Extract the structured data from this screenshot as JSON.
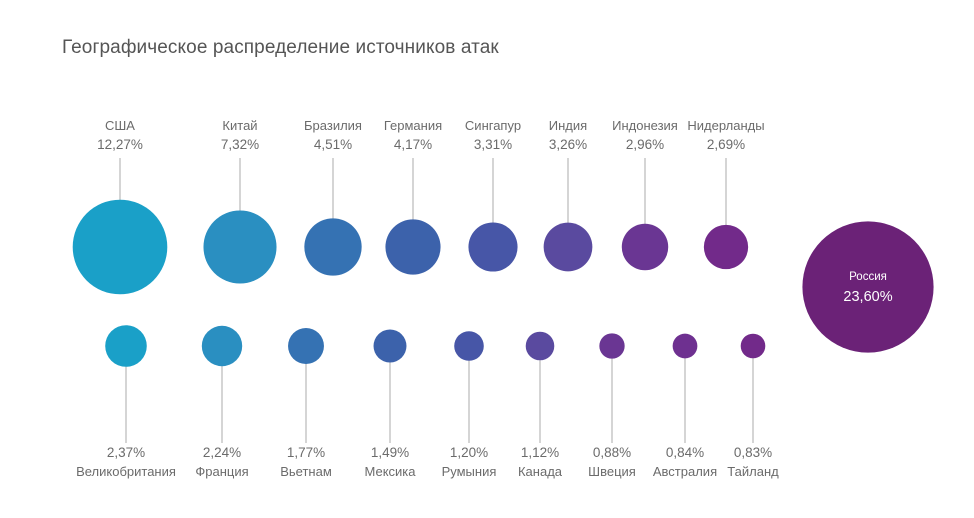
{
  "title": "Географическое распределение источников атак",
  "chart_data": {
    "type": "bubble",
    "title": "Географическое распределение источников атак",
    "unit": "%",
    "series": [
      {
        "row": "top",
        "points": [
          {
            "country": "США",
            "value": 12.27,
            "label": "12,27%",
            "color": "#1aa0c8"
          },
          {
            "country": "Китай",
            "value": 7.32,
            "label": "7,32%",
            "color": "#2a8fc1"
          },
          {
            "country": "Бразилия",
            "value": 4.51,
            "label": "4,51%",
            "color": "#3572b3"
          },
          {
            "country": "Германия",
            "value": 4.17,
            "label": "4,17%",
            "color": "#3c62ab"
          },
          {
            "country": "Сингапур",
            "value": 3.31,
            "label": "3,31%",
            "color": "#4756a7"
          },
          {
            "country": "Индия",
            "value": 3.26,
            "label": "3,26%",
            "color": "#5a4a9f"
          },
          {
            "country": "Индонезия",
            "value": 2.96,
            "label": "2,96%",
            "color": "#6a3693"
          },
          {
            "country": "Нидерланды",
            "value": 2.69,
            "label": "2,69%",
            "color": "#722a8a"
          }
        ]
      },
      {
        "row": "bottom",
        "points": [
          {
            "country": "Великобритания",
            "value": 2.37,
            "label": "2,37%",
            "color": "#1aa0c8"
          },
          {
            "country": "Франция",
            "value": 2.24,
            "label": "2,24%",
            "color": "#2a8fc1"
          },
          {
            "country": "Вьетнам",
            "value": 1.77,
            "label": "1,77%",
            "color": "#3572b3"
          },
          {
            "country": "Мексика",
            "value": 1.49,
            "label": "1,49%",
            "color": "#3c62ab"
          },
          {
            "country": "Румыния",
            "value": 1.2,
            "label": "1,20%",
            "color": "#4756a7"
          },
          {
            "country": "Канада",
            "value": 1.12,
            "label": "1,12%",
            "color": "#5a4a9f"
          },
          {
            "country": "Швеция",
            "value": 0.88,
            "label": "0,88%",
            "color": "#6a3693"
          },
          {
            "country": "Австралия",
            "value": 0.84,
            "label": "0,84%",
            "color": "#6e3090"
          },
          {
            "country": "Тайланд",
            "value": 0.83,
            "label": "0,83%",
            "color": "#722a8a"
          }
        ]
      },
      {
        "row": "featured",
        "points": [
          {
            "country": "Россия",
            "value": 23.6,
            "label": "23,60%",
            "color": "#6b2277"
          }
        ]
      }
    ],
    "leader_line_color": "#b9b9b9"
  }
}
